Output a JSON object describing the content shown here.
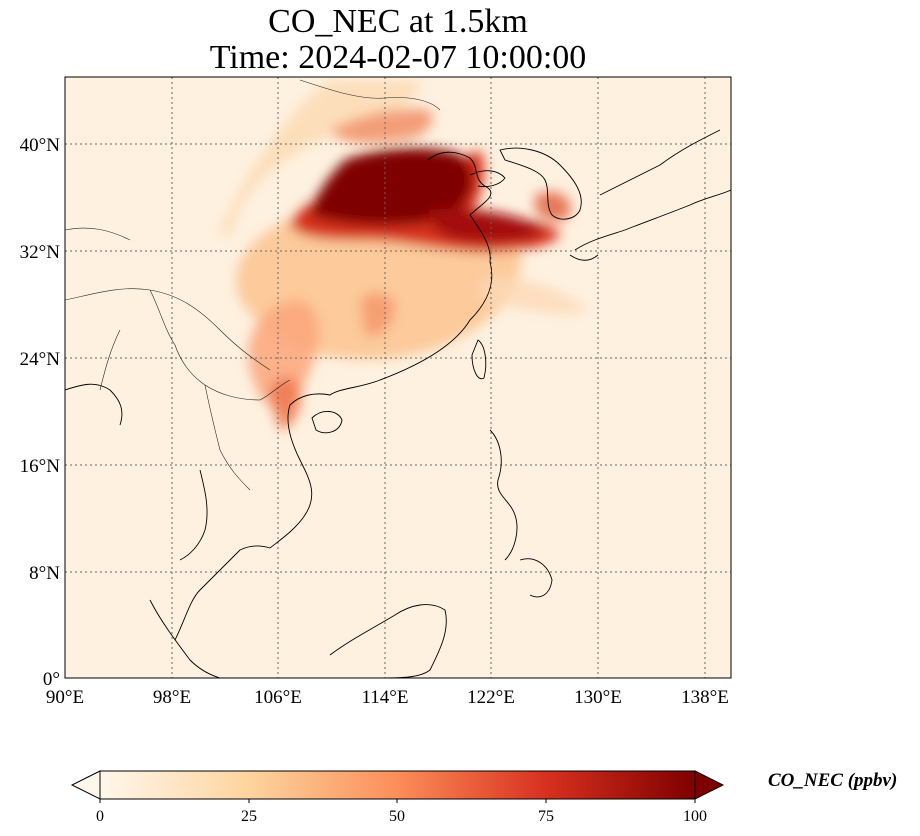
{
  "title": "CO_NEC at 1.5km",
  "subtitle": "Time: 2024-02-07 10:00:00",
  "map": {
    "projection": "PlateCarree",
    "lon_range": [
      90,
      140
    ],
    "lat_range": [
      0,
      45
    ],
    "gridlines": "dotted",
    "lon_ticks": [
      90,
      98,
      106,
      114,
      122,
      130,
      138
    ],
    "lat_ticks": [
      0,
      8,
      16,
      24,
      32,
      40
    ],
    "lon_tick_labels": [
      "90°E",
      "98°E",
      "106°E",
      "114°E",
      "122°E",
      "130°E",
      "138°E"
    ],
    "lat_tick_labels": [
      "0°",
      "8°N",
      "16°N",
      "24°N",
      "32°N",
      "40°N"
    ],
    "features": [
      "coastlines",
      "country borders"
    ]
  },
  "colorbar": {
    "label": "CO_NEC (ppbv)",
    "cmap": "OrRd",
    "min": 0,
    "max": 100,
    "extend": "both",
    "tick_labels": [
      "0",
      "25",
      "50",
      "75",
      "100"
    ],
    "colors": [
      "#fff7ec",
      "#fdd49e",
      "#fc8d59",
      "#d7301f",
      "#7f0000"
    ]
  }
}
